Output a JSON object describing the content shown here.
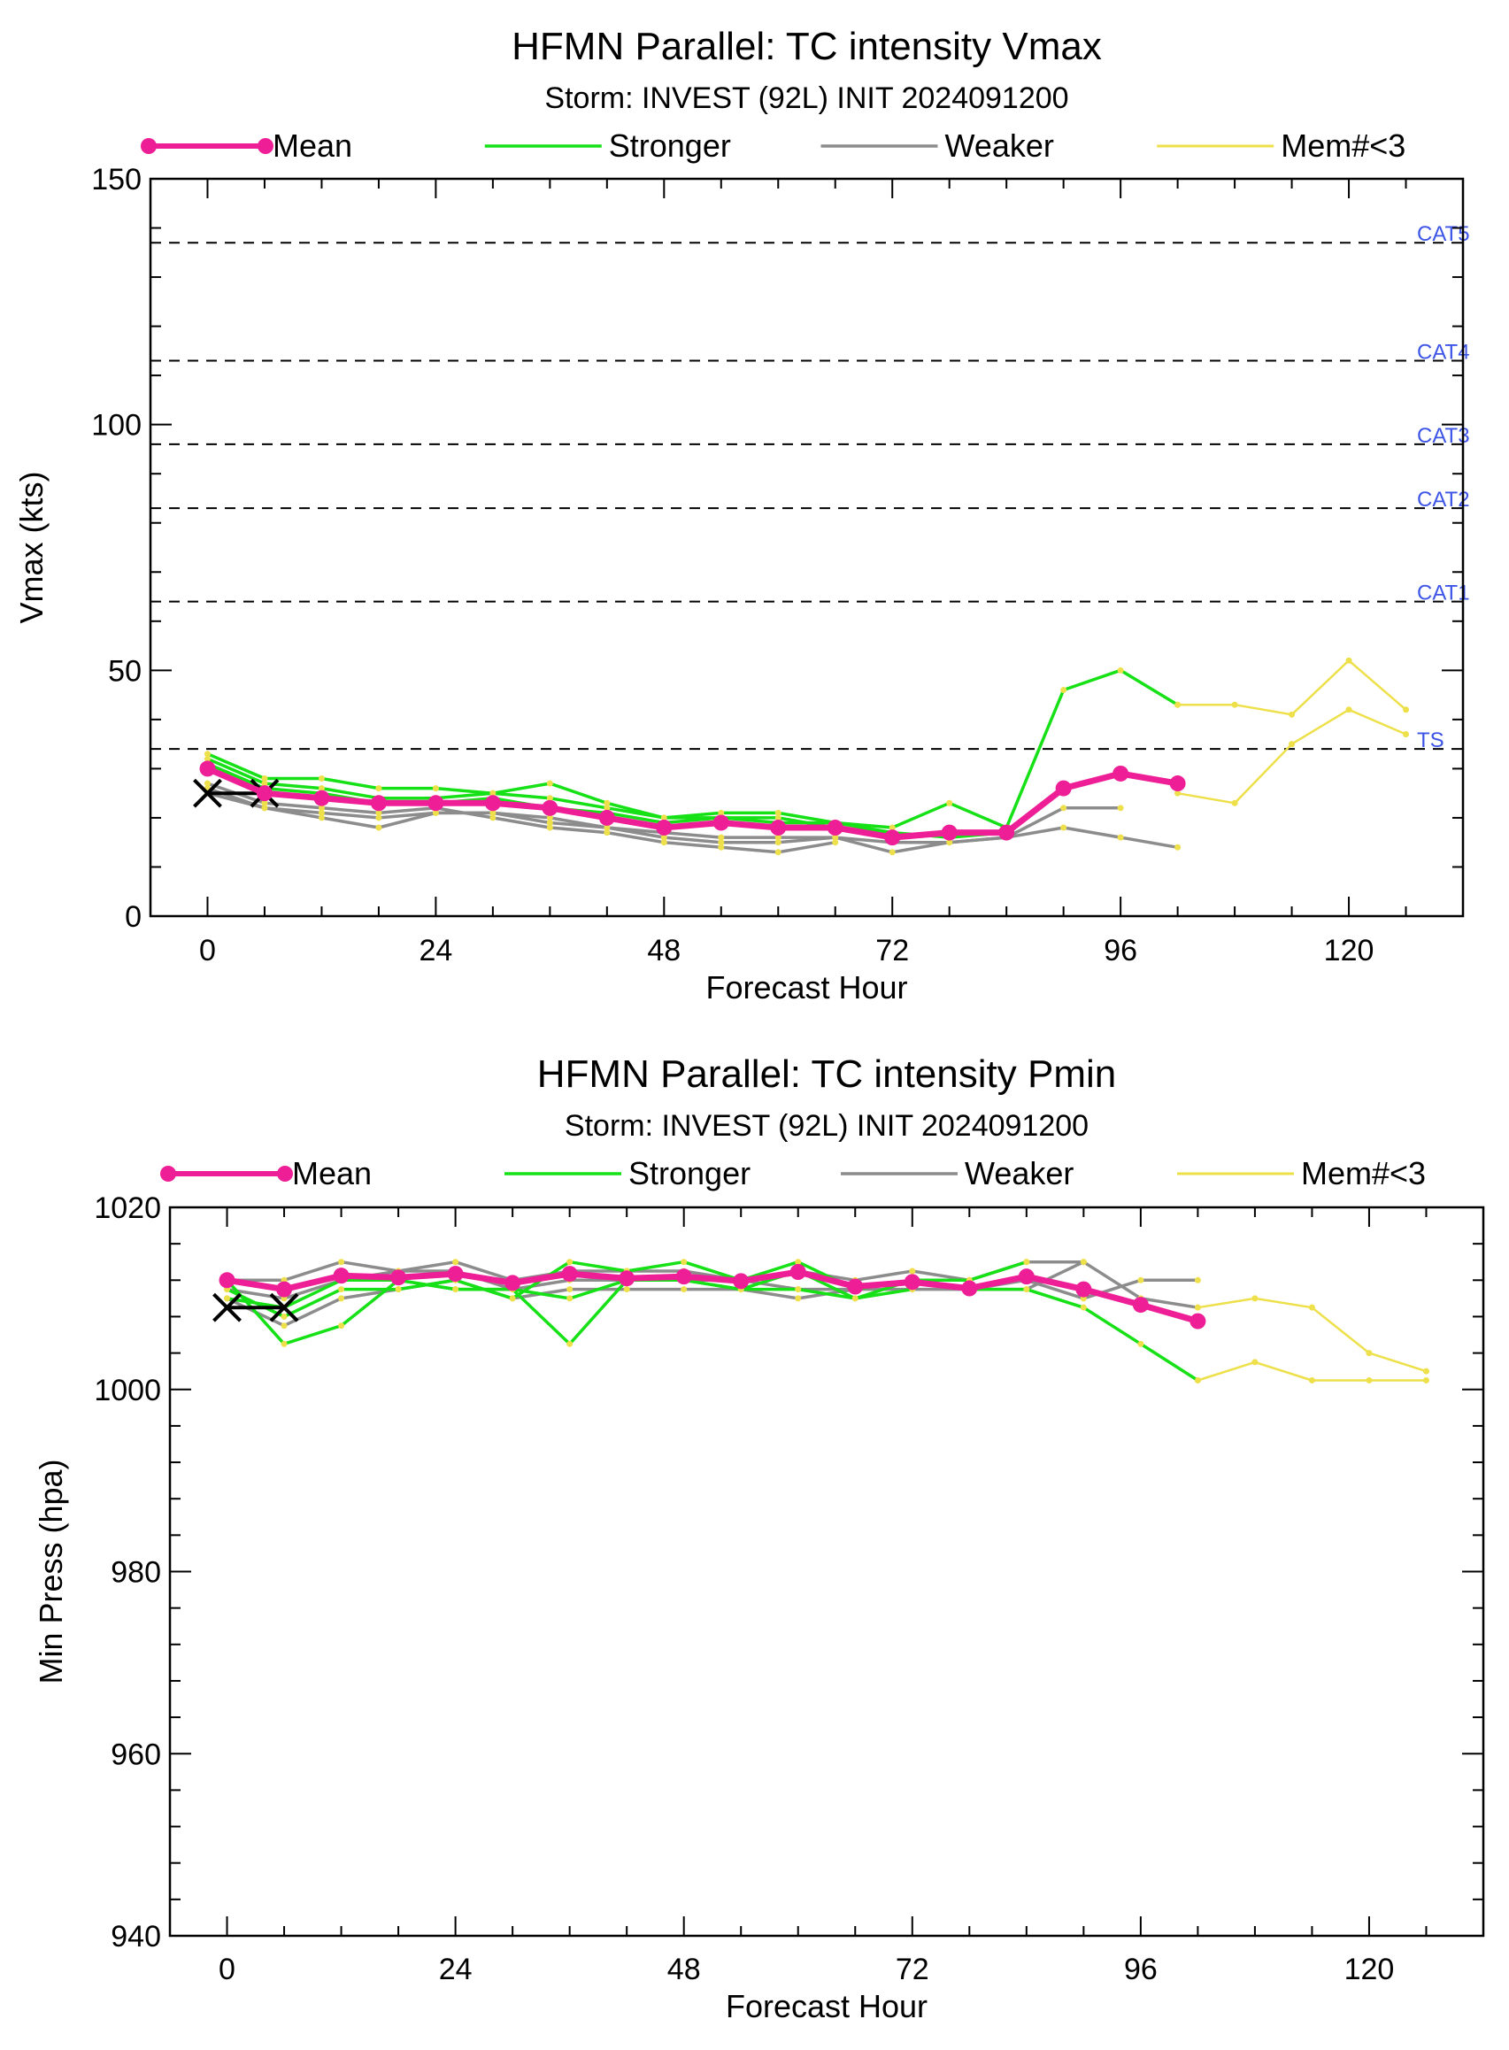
{
  "chart_data": [
    {
      "type": "line",
      "title": "HFMN Parallel: TC intensity Vmax",
      "subtitle": "Storm: INVEST (92L) INIT 2024091200",
      "xlabel": "Forecast Hour",
      "ylabel": "Vmax (kts)",
      "xlim": [
        -6,
        132
      ],
      "ylim": [
        0,
        150
      ],
      "xticks": [
        0,
        24,
        48,
        72,
        96,
        120
      ],
      "yticks": [
        0,
        50,
        100,
        150
      ],
      "grid": false,
      "legend": [
        "Mean",
        "Stronger",
        "Weaker",
        "Mem#<3"
      ],
      "legend_position": "top",
      "colors": {
        "mean": "#ee1e96",
        "stronger": "#16e016",
        "weaker": "#8c8c8c",
        "few": "#ede04a",
        "category": "#3c55e6",
        "best_track": "#000000"
      },
      "category_lines": [
        {
          "label": "TS",
          "value": 34
        },
        {
          "label": "CAT1",
          "value": 64
        },
        {
          "label": "CAT2",
          "value": 83
        },
        {
          "label": "CAT3",
          "value": 96
        },
        {
          "label": "CAT4",
          "value": 113
        },
        {
          "label": "CAT5",
          "value": 137
        }
      ],
      "series": [
        {
          "name": "Mean",
          "x": [
            0,
            6,
            12,
            18,
            24,
            30,
            36,
            42,
            48,
            54,
            60,
            66,
            72,
            78,
            84,
            90,
            96,
            102
          ],
          "values": [
            30,
            25,
            24,
            23,
            23,
            23,
            22,
            20,
            18,
            19,
            18,
            18,
            16,
            17,
            17,
            26,
            29,
            27
          ]
        },
        {
          "name": "Stronger",
          "x": [
            0,
            6,
            12,
            18,
            24,
            30,
            36,
            42,
            48,
            54,
            60,
            66,
            72,
            78,
            84,
            90,
            96,
            102
          ],
          "values": [
            33,
            28,
            28,
            26,
            26,
            25,
            27,
            23,
            20,
            21,
            21,
            19,
            18,
            23,
            18,
            46,
            50,
            43
          ]
        },
        {
          "name": "Stronger",
          "x": [
            0,
            6,
            12,
            18,
            24,
            30,
            36,
            42,
            48,
            54,
            60,
            66,
            72,
            78,
            84
          ],
          "values": [
            32,
            27,
            26,
            24,
            24,
            25,
            24,
            22,
            20,
            20,
            19,
            19,
            17,
            16,
            17
          ]
        },
        {
          "name": "Stronger",
          "x": [
            0,
            6,
            12,
            18,
            24,
            30,
            36,
            42,
            48,
            54,
            60,
            66,
            72
          ],
          "values": [
            31,
            26,
            25,
            23,
            23,
            24,
            22,
            21,
            19,
            20,
            20,
            18,
            17
          ]
        },
        {
          "name": "Weaker",
          "x": [
            0,
            6,
            12,
            18,
            24,
            30,
            36,
            42,
            48,
            54,
            60,
            66,
            72,
            78,
            84,
            90,
            96
          ],
          "values": [
            26,
            22,
            21,
            20,
            21,
            21,
            20,
            18,
            17,
            16,
            16,
            16,
            15,
            15,
            16,
            22,
            22
          ]
        },
        {
          "name": "Weaker",
          "x": [
            0,
            6,
            12,
            18,
            24,
            30,
            36,
            42,
            48,
            54,
            60,
            66,
            72,
            78,
            84,
            90,
            96,
            102
          ],
          "values": [
            25,
            22,
            20,
            18,
            21,
            21,
            19,
            18,
            16,
            15,
            15,
            16,
            13,
            15,
            16,
            18,
            16,
            14
          ]
        },
        {
          "name": "Weaker",
          "x": [
            0,
            6,
            12,
            18,
            24,
            30,
            36,
            42,
            48,
            54,
            60,
            66
          ],
          "values": [
            27,
            23,
            22,
            21,
            22,
            20,
            18,
            17,
            15,
            14,
            13,
            15
          ]
        },
        {
          "name": "Mem#<3",
          "x": [
            102,
            108,
            114,
            120,
            126
          ],
          "values": [
            43,
            43,
            41,
            52,
            42
          ]
        },
        {
          "name": "Mem#<3",
          "x": [
            102,
            108,
            114,
            120,
            126
          ],
          "values": [
            25,
            23,
            35,
            42,
            37
          ]
        },
        {
          "name": "Best track",
          "x": [
            0,
            6
          ],
          "values": [
            25,
            25
          ]
        }
      ]
    },
    {
      "type": "line",
      "title": "HFMN Parallel: TC intensity Pmin",
      "subtitle": "Storm: INVEST (92L) INIT 2024091200",
      "xlabel": "Forecast Hour",
      "ylabel": "Min Press (hpa)",
      "xlim": [
        -6,
        132
      ],
      "ylim": [
        940,
        1020
      ],
      "xticks": [
        0,
        24,
        48,
        72,
        96,
        120
      ],
      "yticks": [
        940,
        960,
        980,
        1000,
        1020
      ],
      "grid": false,
      "legend": [
        "Mean",
        "Stronger",
        "Weaker",
        "Mem#<3"
      ],
      "legend_position": "top",
      "colors": {
        "mean": "#ee1e96",
        "stronger": "#16e016",
        "weaker": "#8c8c8c",
        "few": "#ede04a",
        "best_track": "#000000"
      },
      "series": [
        {
          "name": "Mean",
          "x": [
            0,
            6,
            12,
            18,
            24,
            30,
            36,
            42,
            48,
            54,
            60,
            66,
            72,
            78,
            84,
            90,
            96,
            102
          ],
          "values": [
            1012,
            1011,
            1012.5,
            1012.3,
            1012.7,
            1011.7,
            1012.7,
            1012.2,
            1012.4,
            1011.9,
            1012.9,
            1011.3,
            1011.8,
            1011.1,
            1012.4,
            1011,
            1009.3,
            1007.5
          ]
        },
        {
          "name": "Stronger",
          "x": [
            0,
            6,
            12,
            18,
            24,
            30,
            36,
            42,
            48,
            54,
            60,
            66,
            72,
            78,
            84,
            90,
            96,
            102
          ],
          "values": [
            1012,
            1005,
            1007,
            1012,
            1011,
            1011,
            1005,
            1012,
            1012,
            1011,
            1011,
            1010,
            1012,
            1011,
            1011,
            1009,
            1005,
            1001
          ]
        },
        {
          "name": "Stronger",
          "x": [
            0,
            6,
            12,
            18,
            24,
            30,
            36,
            42,
            48,
            54,
            60,
            66,
            72,
            78,
            84
          ],
          "values": [
            1011,
            1008,
            1011,
            1011,
            1012,
            1010,
            1014,
            1013,
            1014,
            1012,
            1014,
            1011,
            1012,
            1012,
            1014
          ]
        },
        {
          "name": "Stronger",
          "x": [
            0,
            6,
            12,
            18,
            24,
            30,
            36,
            42,
            48,
            54,
            60,
            66,
            72
          ],
          "values": [
            1010,
            1009,
            1012,
            1012,
            1011,
            1011,
            1010,
            1012,
            1012,
            1011,
            1013,
            1010,
            1011
          ]
        },
        {
          "name": "Weaker",
          "x": [
            0,
            6,
            12,
            18,
            24,
            30,
            36,
            42,
            48,
            54,
            60,
            66,
            72,
            78,
            84,
            90,
            96,
            102
          ],
          "values": [
            1012,
            1012,
            1014,
            1013,
            1014,
            1012,
            1013,
            1013,
            1013,
            1012,
            1013,
            1012,
            1013,
            1012,
            1014,
            1014,
            1010,
            1009
          ]
        },
        {
          "name": "Weaker",
          "x": [
            0,
            6,
            12,
            18,
            24,
            30,
            36,
            42,
            48,
            54,
            60,
            66,
            72,
            78,
            84,
            90,
            96,
            102
          ],
          "values": [
            1011,
            1010,
            1012,
            1013,
            1013,
            1011,
            1012,
            1012,
            1012,
            1012,
            1011,
            1011,
            1012,
            1011,
            1012,
            1010,
            1012,
            1012
          ]
        },
        {
          "name": "Weaker",
          "x": [
            0,
            6,
            12,
            18,
            24,
            30,
            36,
            42,
            48,
            54,
            60,
            66,
            72,
            78,
            84,
            90
          ],
          "values": [
            1010,
            1007,
            1010,
            1011,
            1012,
            1010,
            1011,
            1011,
            1011,
            1011,
            1010,
            1011,
            1011,
            1011,
            1011,
            1014
          ]
        },
        {
          "name": "Mem#<3",
          "x": [
            102,
            108,
            114,
            120,
            126
          ],
          "values": [
            1009,
            1010,
            1009,
            1004,
            1002
          ]
        },
        {
          "name": "Mem#<3",
          "x": [
            102,
            108,
            114,
            120,
            126
          ],
          "values": [
            1001,
            1003,
            1001,
            1001,
            1001
          ]
        },
        {
          "name": "Best track",
          "x": [
            0,
            6
          ],
          "values": [
            1009,
            1009
          ]
        }
      ]
    }
  ]
}
